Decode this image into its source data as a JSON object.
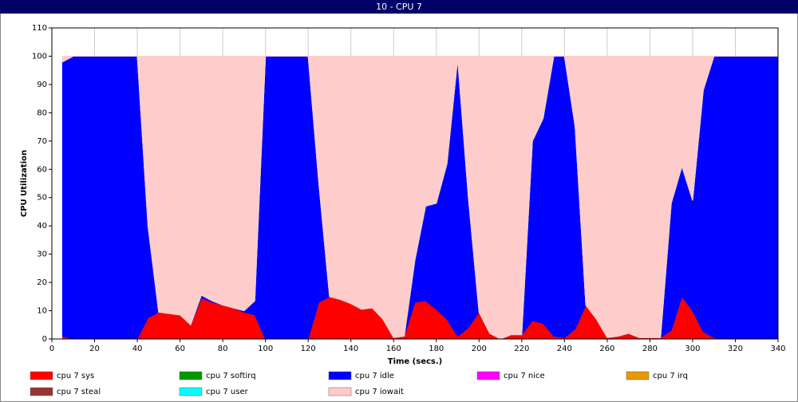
{
  "chart_data": {
    "type": "area",
    "stacked": true,
    "title": "10 - CPU 7",
    "xlabel": "Time (secs.)",
    "ylabel": "CPU Utilization",
    "x": [
      5,
      10,
      15,
      20,
      25,
      30,
      35,
      40,
      45,
      50,
      55,
      60,
      65,
      70,
      75,
      80,
      85,
      90,
      95,
      100,
      105,
      110,
      115,
      120,
      125,
      130,
      135,
      140,
      145,
      150,
      155,
      160,
      165,
      170,
      175,
      180,
      185,
      190,
      195,
      200,
      205,
      210,
      215,
      220,
      225,
      230,
      235,
      240,
      245,
      250,
      255,
      260,
      265,
      270,
      275,
      280,
      285,
      290,
      295,
      300,
      305,
      310,
      315,
      320,
      325,
      330,
      335,
      340
    ],
    "series": [
      {
        "name": "cpu 7 sys",
        "color": "#ff0000",
        "values": [
          1,
          0,
          0,
          0,
          0,
          0,
          0,
          0,
          7.5,
          9.5,
          9,
          8.5,
          5,
          14.5,
          13,
          12,
          11,
          9.5,
          8.5,
          0,
          0,
          0,
          0,
          0,
          13,
          15,
          14,
          12.5,
          10.5,
          11,
          7,
          0.5,
          1,
          13,
          13.5,
          10.5,
          7,
          1,
          4,
          9.5,
          2,
          0,
          1.5,
          1.5,
          6.5,
          5.5,
          1,
          0.5,
          3.5,
          12,
          7,
          0.5,
          1,
          2,
          0.5,
          0.5,
          0.5,
          3,
          15,
          10,
          2.5,
          0.5,
          0,
          0,
          0,
          0,
          0,
          0
        ]
      },
      {
        "name": "cpu 7 softirq",
        "color": "#009900",
        "values": [
          0,
          0,
          0,
          0,
          0,
          0,
          0,
          0,
          0,
          0,
          0,
          0,
          0,
          0,
          0,
          0,
          0,
          0,
          0,
          0,
          0,
          0,
          0,
          0,
          0,
          0,
          0,
          0,
          0,
          0,
          0,
          0,
          0,
          0,
          0,
          0,
          0,
          0,
          0,
          0,
          0,
          0,
          0,
          0,
          0,
          0,
          0,
          0,
          0,
          0,
          0,
          0,
          0,
          0,
          0,
          0,
          0,
          0,
          0,
          0,
          0,
          0,
          0,
          0,
          0,
          0,
          0,
          0
        ]
      },
      {
        "name": "cpu 7 idle",
        "color": "#0000ff",
        "values": [
          97,
          100,
          100,
          100,
          100,
          100,
          100,
          100,
          32.5,
          0,
          0,
          0,
          0,
          1,
          0.5,
          0,
          0,
          0.5,
          5,
          100,
          100,
          100,
          100,
          100,
          42,
          0,
          0,
          0,
          0,
          0,
          0,
          0,
          0,
          15,
          33.5,
          37.5,
          55,
          98,
          46,
          0,
          0,
          0,
          0,
          0,
          63.5,
          72.5,
          99,
          99.5,
          71.5,
          0,
          0,
          0,
          0,
          0,
          0,
          0,
          0,
          45,
          46,
          39,
          85.5,
          99.5,
          100,
          100,
          100,
          100,
          100,
          100
        ]
      },
      {
        "name": "cpu 7 nice",
        "color": "#ff00ff",
        "values": [
          0,
          0,
          0,
          0,
          0,
          0,
          0,
          0,
          0,
          0,
          0,
          0,
          0,
          0,
          0,
          0,
          0,
          0,
          0,
          0,
          0,
          0,
          0,
          0,
          0,
          0,
          0,
          0,
          0,
          0,
          0,
          0,
          0,
          0,
          0,
          0,
          0,
          0,
          0,
          0,
          0,
          0,
          0,
          0,
          0,
          0,
          0,
          0,
          0,
          0,
          0,
          0,
          0,
          0,
          0,
          0,
          0,
          0,
          0,
          0,
          0,
          0,
          0,
          0,
          0,
          0,
          0,
          0
        ]
      },
      {
        "name": "cpu 7 irq",
        "color": "#e69900",
        "values": [
          0,
          0,
          0,
          0,
          0,
          0,
          0,
          0,
          0,
          0,
          0,
          0,
          0,
          0,
          0,
          0,
          0,
          0,
          0,
          0,
          0,
          0,
          0,
          0,
          0,
          0,
          0,
          0,
          0,
          0,
          0,
          0,
          0,
          0,
          0,
          0,
          0,
          0,
          0,
          0,
          0,
          0,
          0,
          0,
          0,
          0,
          0,
          0,
          0,
          0,
          0,
          0,
          0,
          0,
          0,
          0,
          0,
          0,
          0,
          0,
          0,
          0,
          0,
          0,
          0,
          0,
          0,
          0
        ]
      },
      {
        "name": "cpu 7 steal",
        "color": "#993333",
        "values": [
          0,
          0,
          0,
          0,
          0,
          0,
          0,
          0,
          0,
          0,
          0,
          0,
          0,
          0,
          0,
          0,
          0,
          0,
          0,
          0,
          0,
          0,
          0,
          0,
          0,
          0,
          0,
          0,
          0,
          0,
          0,
          0,
          0,
          0,
          0,
          0,
          0,
          0,
          0,
          0,
          0,
          0,
          0,
          0,
          0,
          0,
          0,
          0,
          0,
          0,
          0,
          0,
          0,
          0,
          0,
          0,
          0,
          0,
          0,
          0,
          0,
          0,
          0,
          0,
          0,
          0,
          0,
          0
        ]
      },
      {
        "name": "cpu 7 user",
        "color": "#00ffff",
        "values": [
          0,
          0,
          0,
          0,
          0,
          0,
          0,
          0,
          0,
          0,
          0,
          0,
          0,
          0,
          0,
          0,
          0,
          0,
          0,
          0,
          0,
          0,
          0,
          0,
          0,
          0,
          0,
          0,
          0,
          0,
          0,
          0,
          0,
          0,
          0,
          0,
          0,
          0,
          0,
          0,
          0,
          0,
          0,
          0,
          0,
          0,
          0,
          0,
          0,
          0,
          0,
          0,
          0,
          0,
          0,
          0,
          0,
          0,
          0,
          0,
          0,
          0,
          0,
          0,
          0,
          0,
          0,
          0
        ]
      },
      {
        "name": "cpu 7 iowait",
        "color": "#ffcccc",
        "values": [
          2,
          0,
          0,
          0,
          0,
          0,
          0,
          0,
          60,
          90.5,
          91,
          91.5,
          95,
          84.5,
          86.5,
          88,
          89,
          90,
          86.5,
          0,
          0,
          0,
          0,
          0,
          45,
          85,
          86,
          87.5,
          89.5,
          89,
          93,
          99.5,
          99,
          72,
          53,
          52,
          38,
          1,
          50,
          90.5,
          98,
          100,
          98.5,
          98.5,
          30,
          22,
          0,
          0,
          25,
          88,
          93,
          99.5,
          99,
          98,
          99.5,
          99.5,
          99.5,
          52,
          39,
          51,
          12,
          0,
          0,
          0,
          0,
          0,
          0,
          0
        ]
      }
    ],
    "xlim": [
      0,
      340
    ],
    "xticks": [
      0,
      20,
      40,
      60,
      80,
      100,
      120,
      140,
      160,
      180,
      200,
      220,
      240,
      260,
      280,
      300,
      320,
      340
    ],
    "ylim": [
      0,
      110
    ],
    "yticks": [
      0,
      10,
      20,
      30,
      40,
      50,
      60,
      70,
      80,
      90,
      100,
      110
    ],
    "grid": true
  }
}
